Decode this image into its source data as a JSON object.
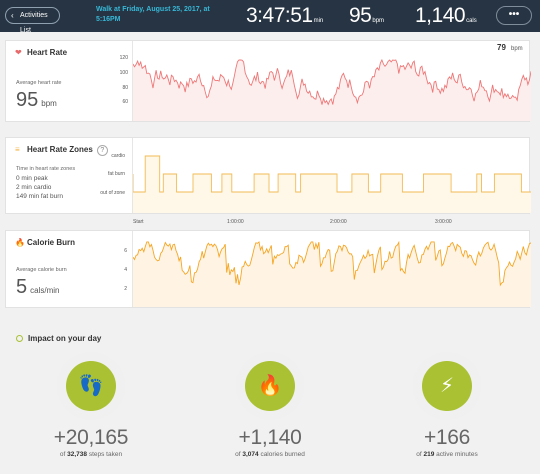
{
  "topbar": {
    "back_label": "Activities List",
    "title": "Walk at Friday, August 25, 2017, at 5:16PM",
    "duration": "3:47:51",
    "duration_unit": "min",
    "heart_rate": "95",
    "heart_rate_unit": "bpm",
    "calories": "1,140",
    "calories_unit": "cals",
    "more_label": "•••"
  },
  "heart_rate_card": {
    "title": "Heart Rate",
    "avg_label": "Average heart rate",
    "avg_value": "95",
    "avg_unit": "bpm",
    "current_value": "79",
    "current_unit": "bpm",
    "yticks": [
      "120",
      "100",
      "80",
      "60"
    ]
  },
  "zones_card": {
    "title": "Heart Rate Zones",
    "help": "?",
    "time_label": "Time in heart rate zones",
    "lines": [
      "0 min peak",
      "2 min cardio",
      "149 min fat burn"
    ],
    "yticks": [
      "cardio",
      "fat burn",
      "out of zone"
    ],
    "xticks": [
      "Start",
      "1:00:00",
      "2:00:00",
      "3:00:00"
    ]
  },
  "calorie_card": {
    "title": "Calorie Burn",
    "avg_label": "Average calorie burn",
    "avg_value": "5",
    "avg_unit": "cals/min",
    "yticks": [
      "6",
      "4",
      "2"
    ]
  },
  "impact": {
    "title": "Impact on your day",
    "items": [
      {
        "icon": "footsteps-icon",
        "glyph": "👣",
        "value": "+20,165",
        "prefix": "of",
        "total": "32,738",
        "suffix": "steps taken"
      },
      {
        "icon": "flame-icon",
        "glyph": "🔥",
        "value": "+1,140",
        "prefix": "of",
        "total": "3,074",
        "suffix": "calories burned"
      },
      {
        "icon": "lightning-icon",
        "glyph": "⚡",
        "value": "+166",
        "prefix": "of",
        "total": "219",
        "suffix": "active minutes"
      }
    ]
  },
  "colors": {
    "topbar": "#273443",
    "title_accent": "#37b8d7",
    "heart_line": "#ee7777",
    "heart_fill": "#fdeeee",
    "zone_line": "#f2bb55",
    "zone_fill": "#fff7e8",
    "calorie_line": "#f5a623",
    "calorie_fill": "#fff3e3",
    "impact_green": "#a9c133"
  }
}
